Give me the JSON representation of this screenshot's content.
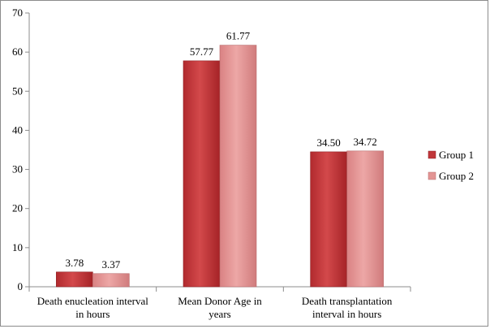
{
  "chart_data": {
    "type": "bar",
    "title": "",
    "xlabel": "",
    "ylabel": "",
    "ylim": [
      0,
      70
    ],
    "yticks": [
      0,
      10,
      20,
      30,
      40,
      50,
      60,
      70
    ],
    "grid": false,
    "legend_position": "right",
    "categories": [
      [
        "Death enucleation interval",
        "in hours"
      ],
      [
        "Mean  Donor  Age in",
        "years"
      ],
      [
        "Death transplantation",
        "interval  in hours"
      ]
    ],
    "series": [
      {
        "name": "Group 1",
        "values": [
          3.78,
          57.77,
          34.5
        ],
        "labels": [
          "3.78",
          "57.77",
          "34.50"
        ],
        "color": "#c0373a"
      },
      {
        "name": "Group 2",
        "values": [
          3.37,
          61.77,
          34.72
        ],
        "labels": [
          "3.37",
          "61.77",
          "34.72"
        ],
        "color": "#e39594"
      }
    ]
  }
}
